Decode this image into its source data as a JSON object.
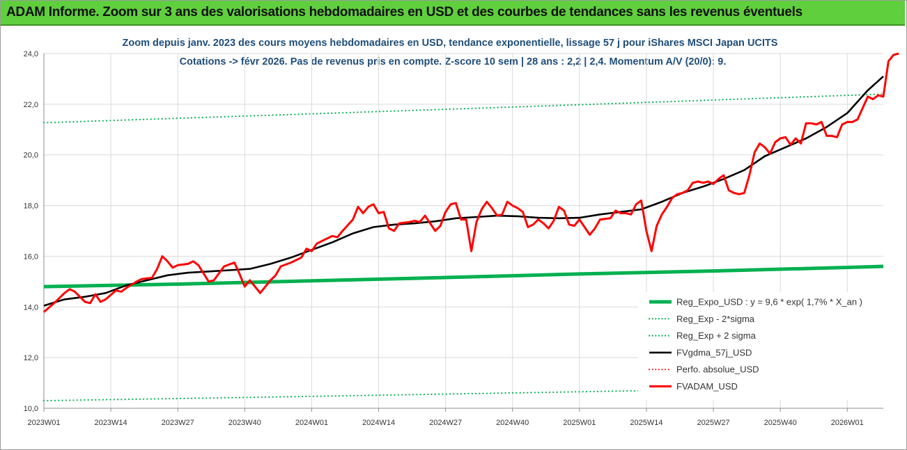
{
  "header": {
    "title": "ADAM Informe. Zoom sur 3 ans des valorisations hebdomadaires en USD et des courbes de tendances sans les revenus éventuels"
  },
  "chart_data": {
    "type": "line",
    "title_lines": [
      "Zoom depuis janv. 2023 des cours moyens hebdomadaires en USD, tendance exponentielle, lissage 57 j pour iShares MSCI Japan UCITS",
      "Cotations -> févr 2026.  Pas de revenus pris en compte.  Z-score 10 sem | 28 ans : 2,2 | 2,4.  Momentum A/V (20/0): 9."
    ],
    "xlabel": "",
    "ylabel": "",
    "ylim": [
      10,
      24
    ],
    "yticks": [
      "10,0",
      "12,0",
      "14,0",
      "16,0",
      "18,0",
      "20,0",
      "22,0",
      "24,0"
    ],
    "x_week_range": [
      0,
      163
    ],
    "xticks": [
      {
        "week": 0,
        "label": "2023W01"
      },
      {
        "week": 13,
        "label": "2023W14"
      },
      {
        "week": 26,
        "label": "2023W27"
      },
      {
        "week": 39,
        "label": "2023W40"
      },
      {
        "week": 52,
        "label": "2024W01"
      },
      {
        "week": 65,
        "label": "2024W14"
      },
      {
        "week": 78,
        "label": "2024W27"
      },
      {
        "week": 91,
        "label": "2024W40"
      },
      {
        "week": 104,
        "label": "2025W01"
      },
      {
        "week": 117,
        "label": "2025W14"
      },
      {
        "week": 130,
        "label": "2025W27"
      },
      {
        "week": 143,
        "label": "2025W40"
      },
      {
        "week": 156,
        "label": "2026W01"
      }
    ],
    "grid": true,
    "legend_position": "bottom-right",
    "series": [
      {
        "name": "Reg_Expo_USD : y = 9,6 * exp( 1,7% *  X_an )",
        "color": "#00b050",
        "style": "solid",
        "width": 5,
        "points": [
          [
            0,
            14.8
          ],
          [
            26,
            14.9
          ],
          [
            52,
            15.03
          ],
          [
            78,
            15.16
          ],
          [
            104,
            15.3
          ],
          [
            130,
            15.42
          ],
          [
            156,
            15.56
          ],
          [
            163,
            15.6
          ]
        ]
      },
      {
        "name": "Reg_Exp - 2*sigma",
        "color": "#00b050",
        "style": "dotted",
        "width": 2.2,
        "points": [
          [
            0,
            10.3
          ],
          [
            52,
            10.47
          ],
          [
            104,
            10.65
          ],
          [
            163,
            10.86
          ]
        ]
      },
      {
        "name": "Reg_Exp + 2 sigma",
        "color": "#00b050",
        "style": "dotted",
        "width": 2.2,
        "points": [
          [
            0,
            21.27
          ],
          [
            52,
            21.62
          ],
          [
            104,
            21.98
          ],
          [
            163,
            22.4
          ]
        ]
      },
      {
        "name": "FVgdma_57j_USD",
        "color": "#000000",
        "style": "solid",
        "width": 2.6,
        "points": [
          [
            0,
            14.05
          ],
          [
            4,
            14.3
          ],
          [
            8,
            14.4
          ],
          [
            12,
            14.55
          ],
          [
            16,
            14.85
          ],
          [
            20,
            15.05
          ],
          [
            24,
            15.25
          ],
          [
            28,
            15.35
          ],
          [
            32,
            15.4
          ],
          [
            36,
            15.45
          ],
          [
            40,
            15.5
          ],
          [
            44,
            15.7
          ],
          [
            48,
            15.95
          ],
          [
            52,
            16.25
          ],
          [
            56,
            16.55
          ],
          [
            60,
            16.9
          ],
          [
            64,
            17.15
          ],
          [
            68,
            17.25
          ],
          [
            72,
            17.3
          ],
          [
            76,
            17.38
          ],
          [
            80,
            17.5
          ],
          [
            84,
            17.55
          ],
          [
            88,
            17.6
          ],
          [
            92,
            17.58
          ],
          [
            96,
            17.52
          ],
          [
            100,
            17.5
          ],
          [
            104,
            17.52
          ],
          [
            108,
            17.65
          ],
          [
            112,
            17.75
          ],
          [
            116,
            17.85
          ],
          [
            120,
            18.15
          ],
          [
            124,
            18.5
          ],
          [
            128,
            18.75
          ],
          [
            132,
            19.05
          ],
          [
            136,
            19.4
          ],
          [
            140,
            19.95
          ],
          [
            144,
            20.3
          ],
          [
            148,
            20.65
          ],
          [
            152,
            21.1
          ],
          [
            156,
            21.65
          ],
          [
            160,
            22.55
          ],
          [
            163,
            23.1
          ]
        ]
      },
      {
        "name": "Perfo. absolue_USD",
        "color": "#ff0000",
        "style": "dotted",
        "width": 2,
        "points": []
      },
      {
        "name": "FVADAM_USD",
        "color": "#ff0000",
        "style": "solid",
        "width": 3,
        "points": [
          [
            0,
            13.8
          ],
          [
            2,
            14.15
          ],
          [
            4,
            14.55
          ],
          [
            5,
            14.7
          ],
          [
            6,
            14.6
          ],
          [
            8,
            14.2
          ],
          [
            9,
            14.15
          ],
          [
            10,
            14.5
          ],
          [
            11,
            14.2
          ],
          [
            12,
            14.3
          ],
          [
            14,
            14.65
          ],
          [
            15,
            14.6
          ],
          [
            16,
            14.75
          ],
          [
            18,
            15.0
          ],
          [
            19,
            15.1
          ],
          [
            21,
            15.15
          ],
          [
            22,
            15.5
          ],
          [
            23,
            16.0
          ],
          [
            24,
            15.8
          ],
          [
            25,
            15.55
          ],
          [
            26,
            15.65
          ],
          [
            28,
            15.7
          ],
          [
            29,
            15.8
          ],
          [
            30,
            15.65
          ],
          [
            32,
            15.0
          ],
          [
            33,
            15.05
          ],
          [
            35,
            15.6
          ],
          [
            37,
            15.75
          ],
          [
            38,
            15.3
          ],
          [
            39,
            14.8
          ],
          [
            40,
            15.05
          ],
          [
            42,
            14.55
          ],
          [
            44,
            15.05
          ],
          [
            45,
            15.25
          ],
          [
            46,
            15.6
          ],
          [
            48,
            15.75
          ],
          [
            50,
            15.95
          ],
          [
            51,
            16.3
          ],
          [
            52,
            16.2
          ],
          [
            53,
            16.5
          ],
          [
            55,
            16.7
          ],
          [
            56,
            16.8
          ],
          [
            57,
            16.75
          ],
          [
            58,
            17.0
          ],
          [
            60,
            17.45
          ],
          [
            61,
            17.95
          ],
          [
            62,
            17.7
          ],
          [
            63,
            17.95
          ],
          [
            64,
            18.05
          ],
          [
            65,
            17.7
          ],
          [
            66,
            17.75
          ],
          [
            67,
            17.1
          ],
          [
            68,
            17.0
          ],
          [
            69,
            17.3
          ],
          [
            71,
            17.35
          ],
          [
            72,
            17.4
          ],
          [
            73,
            17.35
          ],
          [
            74,
            17.6
          ],
          [
            76,
            17.0
          ],
          [
            77,
            17.2
          ],
          [
            78,
            17.75
          ],
          [
            79,
            18.05
          ],
          [
            80,
            18.1
          ],
          [
            81,
            17.45
          ],
          [
            82,
            17.45
          ],
          [
            83,
            16.2
          ],
          [
            84,
            17.35
          ],
          [
            85,
            17.85
          ],
          [
            86,
            18.15
          ],
          [
            87,
            17.9
          ],
          [
            88,
            17.6
          ],
          [
            89,
            17.65
          ],
          [
            90,
            18.15
          ],
          [
            91,
            18.0
          ],
          [
            92,
            17.9
          ],
          [
            93,
            17.75
          ],
          [
            94,
            17.15
          ],
          [
            95,
            17.25
          ],
          [
            96,
            17.45
          ],
          [
            97,
            17.3
          ],
          [
            98,
            17.1
          ],
          [
            99,
            17.4
          ],
          [
            100,
            17.95
          ],
          [
            101,
            17.8
          ],
          [
            102,
            17.25
          ],
          [
            103,
            17.2
          ],
          [
            104,
            17.45
          ],
          [
            106,
            16.85
          ],
          [
            107,
            17.1
          ],
          [
            108,
            17.45
          ],
          [
            110,
            17.5
          ],
          [
            111,
            17.8
          ],
          [
            112,
            17.7
          ],
          [
            113,
            17.7
          ],
          [
            114,
            17.65
          ],
          [
            115,
            18.05
          ],
          [
            116,
            18.2
          ],
          [
            117,
            17.0
          ],
          [
            118,
            16.2
          ],
          [
            119,
            17.2
          ],
          [
            120,
            17.65
          ],
          [
            121,
            17.95
          ],
          [
            122,
            18.3
          ],
          [
            123,
            18.45
          ],
          [
            124,
            18.5
          ],
          [
            125,
            18.6
          ],
          [
            126,
            18.9
          ],
          [
            127,
            18.95
          ],
          [
            128,
            18.9
          ],
          [
            129,
            18.95
          ],
          [
            130,
            18.85
          ],
          [
            131,
            19.05
          ],
          [
            132,
            19.2
          ],
          [
            133,
            18.6
          ],
          [
            134,
            18.5
          ],
          [
            135,
            18.45
          ],
          [
            136,
            18.5
          ],
          [
            137,
            19.2
          ],
          [
            138,
            20.1
          ],
          [
            139,
            20.45
          ],
          [
            140,
            20.3
          ],
          [
            141,
            20.05
          ],
          [
            142,
            20.5
          ],
          [
            143,
            20.65
          ],
          [
            144,
            20.7
          ],
          [
            145,
            20.4
          ],
          [
            146,
            20.65
          ],
          [
            147,
            20.45
          ],
          [
            148,
            21.25
          ],
          [
            149,
            21.25
          ],
          [
            150,
            21.2
          ],
          [
            151,
            21.3
          ],
          [
            152,
            20.75
          ],
          [
            153,
            20.75
          ],
          [
            154,
            20.7
          ],
          [
            155,
            21.2
          ],
          [
            156,
            21.3
          ],
          [
            157,
            21.3
          ],
          [
            158,
            21.4
          ],
          [
            159,
            21.85
          ],
          [
            160,
            22.3
          ],
          [
            161,
            22.2
          ],
          [
            162,
            22.35
          ],
          [
            163,
            22.3
          ],
          [
            164,
            23.7
          ],
          [
            165,
            23.95
          ],
          [
            166,
            24.0
          ]
        ]
      }
    ]
  }
}
